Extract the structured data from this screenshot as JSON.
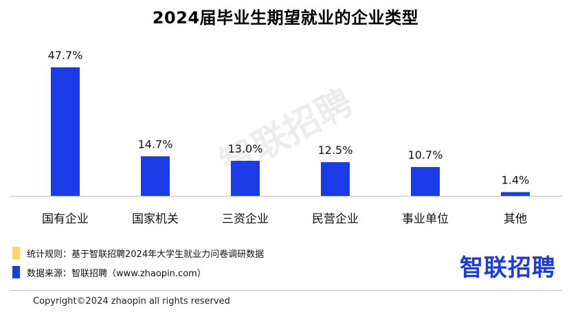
{
  "title": "2024届毕业生期望就业的企业类型",
  "colors": {
    "bar": "#1a3be6",
    "legend_rule": "#ffd966",
    "legend_source": "#1a3be6",
    "brand": "#1a3be6",
    "watermark": "#000000"
  },
  "watermark": "智联招聘",
  "notes": {
    "rule": "统计规则：基于智联招聘2024年大学生就业力问卷调研数据",
    "source": "数据来源：智联招聘（www.zhaopin.com）"
  },
  "brand": "智联招聘",
  "copyright": "Copyright©2024 zhaopin all rights reserved",
  "chart_data": {
    "type": "bar",
    "categories": [
      "国有企业",
      "国家机关",
      "三资企业",
      "民营企业",
      "事业单位",
      "其他"
    ],
    "values": [
      47.7,
      14.7,
      13.0,
      12.5,
      10.7,
      1.4
    ],
    "labels": [
      "47.7%",
      "14.7%",
      "13.0%",
      "12.5%",
      "10.7%",
      "1.4%"
    ],
    "title": "2024届毕业生期望就业的企业类型",
    "xlabel": "",
    "ylabel": "",
    "ylim": [
      0,
      50
    ],
    "grid": false,
    "legend": "none"
  }
}
